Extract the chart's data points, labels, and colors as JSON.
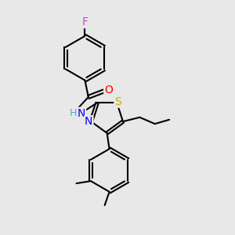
{
  "background_color": "#e8e8e8",
  "bond_color": "#000000",
  "atom_colors": {
    "F": "#cc44cc",
    "O": "#ff0000",
    "N": "#0000ff",
    "S": "#ccaa00",
    "H": "#44aacc",
    "C": "#000000"
  },
  "bond_width": 1.5,
  "figsize": [
    3.0,
    3.0
  ],
  "dpi": 100,
  "xlim": [
    0,
    10
  ],
  "ylim": [
    0,
    10
  ]
}
